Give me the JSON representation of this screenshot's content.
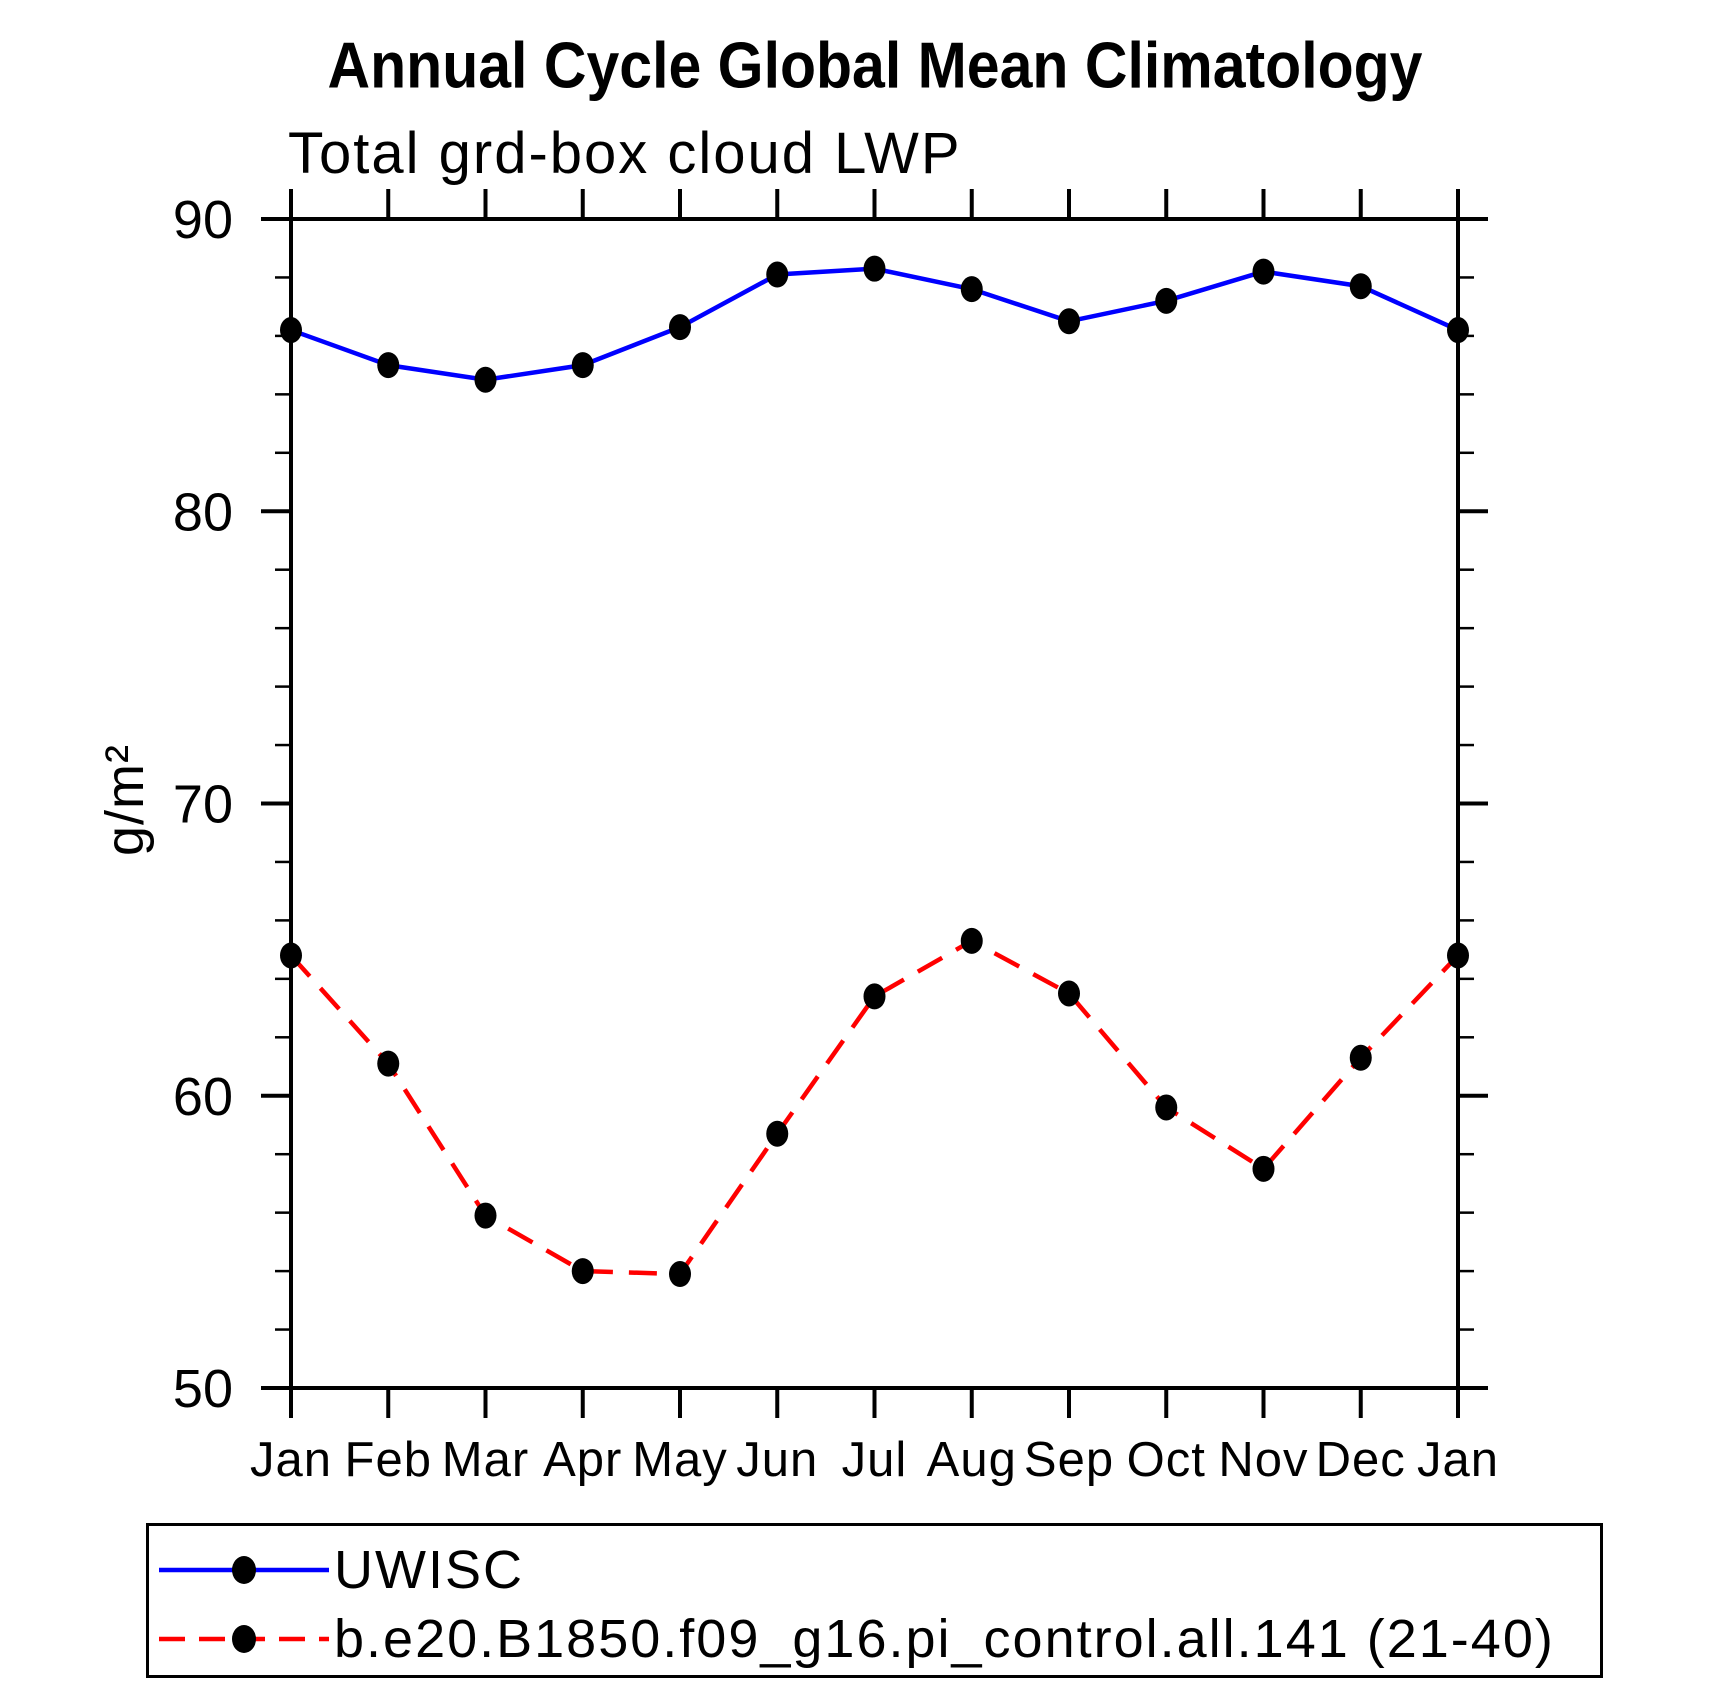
{
  "chart_data": {
    "type": "line",
    "title": "Annual Cycle Global Mean Climatology",
    "subtitle": "Total grd-box cloud LWP",
    "ylabel": "g/m²",
    "xlabel": "",
    "categories": [
      "Jan",
      "Feb",
      "Mar",
      "Apr",
      "May",
      "Jun",
      "Jul",
      "Aug",
      "Sep",
      "Oct",
      "Nov",
      "Dec",
      "Jan"
    ],
    "ylim": [
      50,
      90
    ],
    "yticks_major": [
      50,
      60,
      70,
      80,
      90
    ],
    "ytick_minor_step": 2,
    "grid": false,
    "legend_position": "bottom-left-box",
    "series": [
      {
        "name": "UWISC",
        "color": "#0000ff",
        "line_style": "solid",
        "marker": "filled-circle",
        "marker_color": "#000000",
        "values": [
          86.2,
          85.0,
          84.5,
          85.0,
          86.3,
          88.1,
          88.3,
          87.6,
          86.5,
          87.2,
          88.2,
          87.7,
          86.2
        ]
      },
      {
        "name": "b.e20.B1850.f09_g16.pi_control.all.141 (21-40)",
        "color": "#ff0000",
        "line_style": "dashed",
        "marker": "filled-circle",
        "marker_color": "#000000",
        "values": [
          64.8,
          61.1,
          55.9,
          54.0,
          53.9,
          58.7,
          63.4,
          65.3,
          63.5,
          59.6,
          57.5,
          61.3,
          64.8
        ]
      }
    ]
  }
}
